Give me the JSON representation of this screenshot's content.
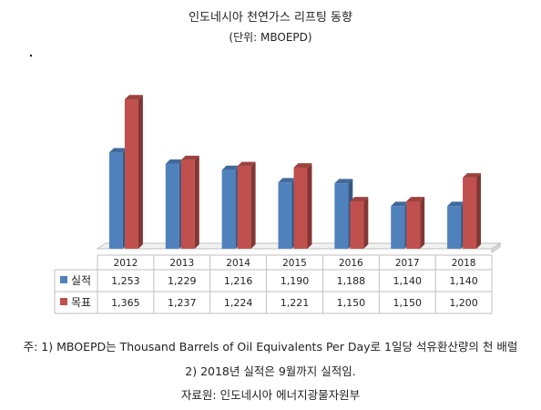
{
  "title": "인도네시아 천연가스 리프팅 동향",
  "subtitle": "(단위: MBOEPD)",
  "chart_data": {
    "type": "bar",
    "categories": [
      "2012",
      "2013",
      "2014",
      "2015",
      "2016",
      "2017",
      "2018"
    ],
    "series": [
      {
        "name": "실적",
        "color": "#4f81bd",
        "values": [
          1253,
          1229,
          1216,
          1190,
          1188,
          1140,
          1140
        ]
      },
      {
        "name": "목표",
        "color": "#c0504d",
        "values": [
          1365,
          1237,
          1224,
          1221,
          1150,
          1150,
          1200
        ]
      }
    ],
    "data_table_rows": [
      [
        "1,253",
        "1,229",
        "1,216",
        "1,190",
        "1,188",
        "1,140",
        "1,140"
      ],
      [
        "1,365",
        "1,237",
        "1,224",
        "1,221",
        "1,150",
        "1,150",
        "1,200"
      ]
    ],
    "ylim": [
      1050,
      1390
    ],
    "grid": false,
    "legend": "data-table-left",
    "style": "3d-column"
  },
  "notes": [
    "주: 1) MBOEPD는 Thousand Barrels of Oil Equivalents Per Day로 1일당 석유환산량의 천 배럴",
    "2) 2018년 실적은 9월까지 실적임."
  ],
  "source": "자료원: 인도네시아 에너지광물자원부"
}
